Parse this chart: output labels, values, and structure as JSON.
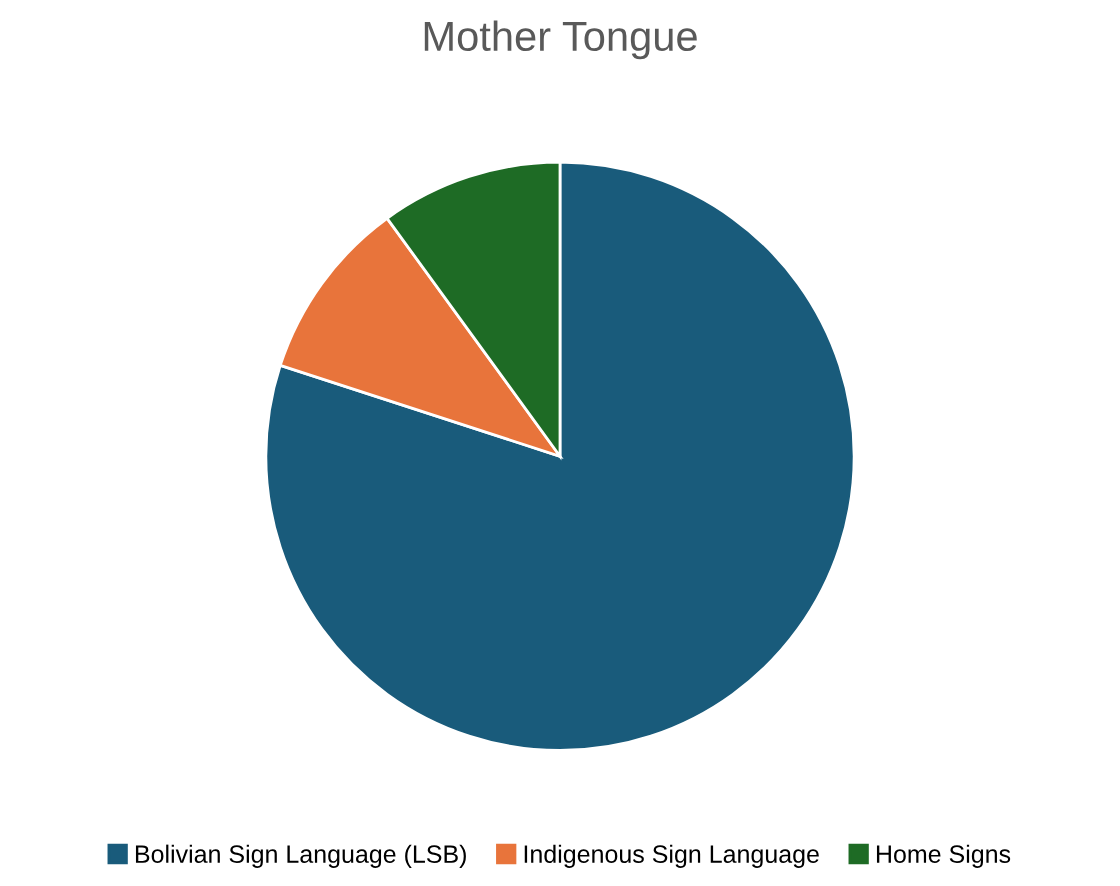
{
  "chart_data": {
    "type": "pie",
    "title": "Mother Tongue",
    "categories": [
      "Bolivian Sign Language (LSB)",
      "Indigenous Sign Language",
      "Home Signs"
    ],
    "values": [
      80,
      10,
      10
    ],
    "colors": [
      "#195b7b",
      "#e8743b",
      "#1e6b25"
    ],
    "legend": "bottom"
  }
}
